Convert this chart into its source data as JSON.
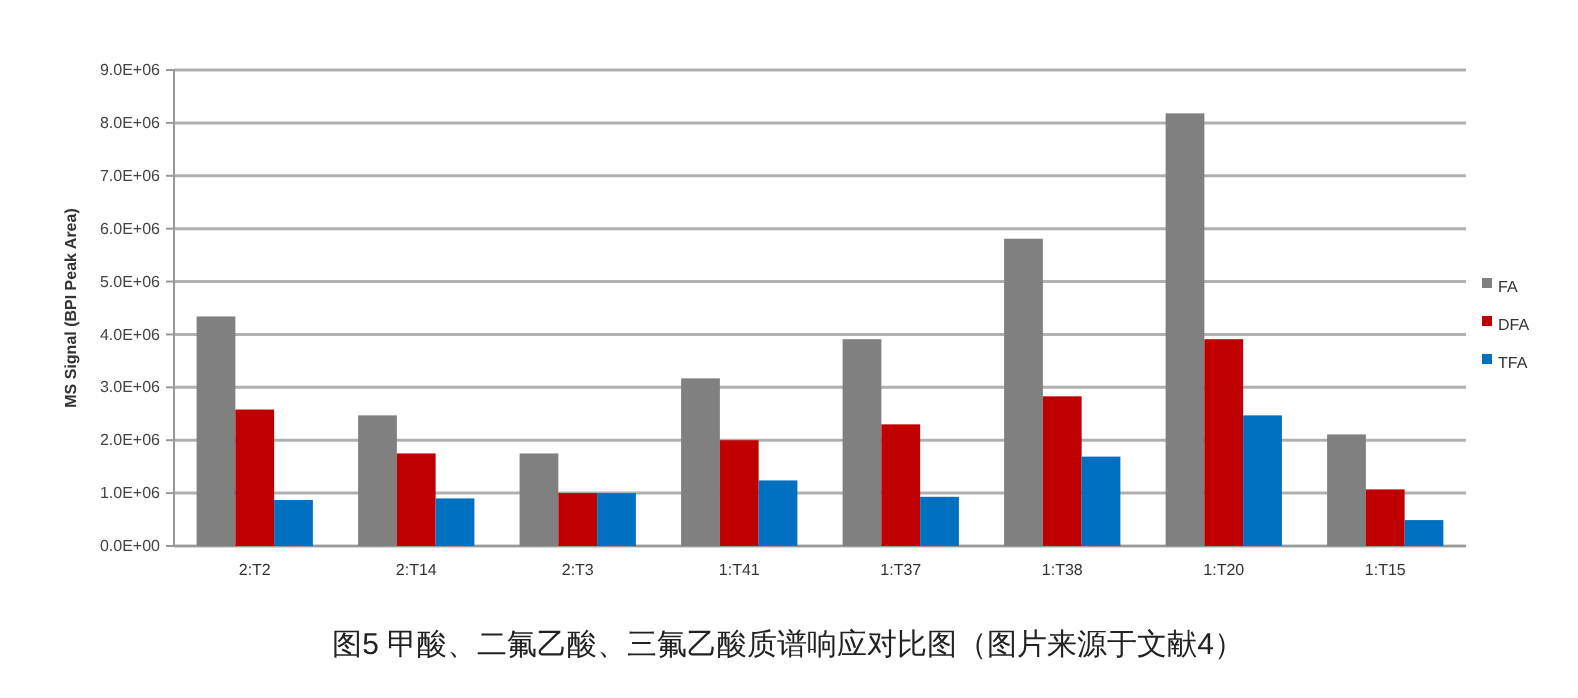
{
  "chart_data": {
    "type": "bar",
    "ylabel": "MS Signal (BPI Peak Area)",
    "categories": [
      "2:T2",
      "2:T14",
      "2:T3",
      "1:T41",
      "1:T37",
      "1:T38",
      "1:T20",
      "1:T15"
    ],
    "series": [
      {
        "name": "FA",
        "color": "#808080",
        "values": [
          4340000,
          2470000,
          1750000,
          3170000,
          3910000,
          5810000,
          8180000,
          2110000
        ]
      },
      {
        "name": "DFA",
        "color": "#c00000",
        "values": [
          2580000,
          1750000,
          1000000,
          2000000,
          2300000,
          2830000,
          3910000,
          1070000
        ]
      },
      {
        "name": "TFA",
        "color": "#0070c0",
        "values": [
          870000,
          900000,
          1000000,
          1240000,
          930000,
          1690000,
          2470000,
          490000
        ]
      }
    ],
    "ylim": [
      0,
      9000000
    ],
    "yticks": [
      {
        "value": 0,
        "label": "0.0E+00"
      },
      {
        "value": 1000000,
        "label": "1.0E+06"
      },
      {
        "value": 2000000,
        "label": "2.0E+06"
      },
      {
        "value": 3000000,
        "label": "3.0E+06"
      },
      {
        "value": 4000000,
        "label": "4.0E+06"
      },
      {
        "value": 5000000,
        "label": "5.0E+06"
      },
      {
        "value": 6000000,
        "label": "6.0E+06"
      },
      {
        "value": 7000000,
        "label": "7.0E+06"
      },
      {
        "value": 8000000,
        "label": "8.0E+06"
      },
      {
        "value": 9000000,
        "label": "9.0E+06"
      }
    ],
    "grid": "y",
    "legend": "right",
    "annotations": [
      "图5 甲酸、二氟乙酸、三氟乙酸质谱响应对比图（图片来源于文献4）"
    ]
  }
}
